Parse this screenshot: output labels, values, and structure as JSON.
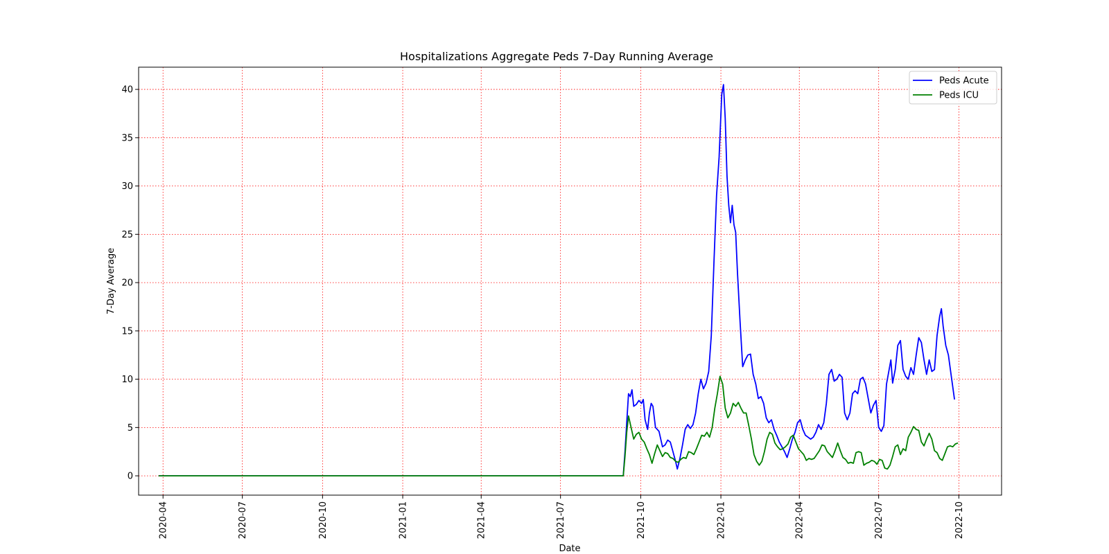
{
  "chart_data": {
    "type": "line",
    "title": "Hospitalizations Aggregate Peds 7-Day Running Average",
    "xlabel": "Date",
    "ylabel": "7-Day Average",
    "x_axis_type": "date",
    "xlim": [
      "2020-03-04",
      "2022-11-19"
    ],
    "ylim": [
      -2,
      42.3
    ],
    "x_ticks": [
      "2020-04",
      "2020-07",
      "2020-10",
      "2021-01",
      "2021-04",
      "2021-07",
      "2021-10",
      "2022-01",
      "2022-04",
      "2022-07",
      "2022-10"
    ],
    "y_ticks": [
      0,
      5,
      10,
      15,
      20,
      25,
      30,
      35,
      40
    ],
    "grid": true,
    "grid_style": "dotted",
    "grid_color": "#ff0000",
    "legend_position": "top-right",
    "series": [
      {
        "name": "Peds Acute",
        "color": "#0000ff",
        "points": [
          [
            "2020-03-27",
            0
          ],
          [
            "2021-09-11",
            0
          ],
          [
            "2021-09-13",
            2.5
          ],
          [
            "2021-09-15",
            5.5
          ],
          [
            "2021-09-17",
            8.5
          ],
          [
            "2021-09-19",
            8.2
          ],
          [
            "2021-09-21",
            8.9
          ],
          [
            "2021-09-23",
            7.2
          ],
          [
            "2021-09-26",
            7.4
          ],
          [
            "2021-09-29",
            7.8
          ],
          [
            "2021-10-02",
            7.5
          ],
          [
            "2021-10-04",
            7.9
          ],
          [
            "2021-10-06",
            5.8
          ],
          [
            "2021-10-09",
            4.8
          ],
          [
            "2021-10-11",
            6.5
          ],
          [
            "2021-10-13",
            7.5
          ],
          [
            "2021-10-15",
            7.2
          ],
          [
            "2021-10-18",
            5.0
          ],
          [
            "2021-10-22",
            4.6
          ],
          [
            "2021-10-26",
            3.0
          ],
          [
            "2021-10-29",
            3.2
          ],
          [
            "2021-11-01",
            3.7
          ],
          [
            "2021-11-04",
            3.5
          ],
          [
            "2021-11-07",
            2.5
          ],
          [
            "2021-11-10",
            1.5
          ],
          [
            "2021-11-12",
            0.7
          ],
          [
            "2021-11-15",
            1.8
          ],
          [
            "2021-11-18",
            3.2
          ],
          [
            "2021-11-21",
            4.8
          ],
          [
            "2021-11-24",
            5.3
          ],
          [
            "2021-11-27",
            4.9
          ],
          [
            "2021-11-30",
            5.3
          ],
          [
            "2021-12-03",
            6.5
          ],
          [
            "2021-12-06",
            8.5
          ],
          [
            "2021-12-09",
            10.0
          ],
          [
            "2021-12-12",
            9.0
          ],
          [
            "2021-12-15",
            9.6
          ],
          [
            "2021-12-18",
            10.8
          ],
          [
            "2021-12-21",
            14.5
          ],
          [
            "2021-12-24",
            22.0
          ],
          [
            "2021-12-27",
            29.0
          ],
          [
            "2021-12-30",
            33.0
          ],
          [
            "2022-01-02",
            39.5
          ],
          [
            "2022-01-04",
            40.5
          ],
          [
            "2022-01-06",
            37.0
          ],
          [
            "2022-01-08",
            31.0
          ],
          [
            "2022-01-10",
            28.0
          ],
          [
            "2022-01-12",
            26.2
          ],
          [
            "2022-01-14",
            28.0
          ],
          [
            "2022-01-16",
            26.0
          ],
          [
            "2022-01-18",
            25.2
          ],
          [
            "2022-01-20",
            21.0
          ],
          [
            "2022-01-23",
            16.0
          ],
          [
            "2022-01-26",
            11.3
          ],
          [
            "2022-01-29",
            12.0
          ],
          [
            "2022-02-01",
            12.5
          ],
          [
            "2022-02-04",
            12.6
          ],
          [
            "2022-02-07",
            10.5
          ],
          [
            "2022-02-10",
            9.5
          ],
          [
            "2022-02-13",
            8.0
          ],
          [
            "2022-02-16",
            8.2
          ],
          [
            "2022-02-19",
            7.5
          ],
          [
            "2022-02-22",
            6.0
          ],
          [
            "2022-02-25",
            5.5
          ],
          [
            "2022-02-28",
            5.8
          ],
          [
            "2022-03-03",
            4.8
          ],
          [
            "2022-03-06",
            4.2
          ],
          [
            "2022-03-09",
            3.5
          ],
          [
            "2022-03-12",
            3.0
          ],
          [
            "2022-03-15",
            2.5
          ],
          [
            "2022-03-18",
            1.9
          ],
          [
            "2022-03-21",
            2.8
          ],
          [
            "2022-03-24",
            3.8
          ],
          [
            "2022-03-27",
            4.5
          ],
          [
            "2022-03-30",
            5.5
          ],
          [
            "2022-04-02",
            5.8
          ],
          [
            "2022-04-05",
            4.8
          ],
          [
            "2022-04-08",
            4.2
          ],
          [
            "2022-04-11",
            4.0
          ],
          [
            "2022-04-14",
            3.8
          ],
          [
            "2022-04-17",
            4.0
          ],
          [
            "2022-04-20",
            4.5
          ],
          [
            "2022-04-23",
            5.3
          ],
          [
            "2022-04-26",
            4.8
          ],
          [
            "2022-04-29",
            5.5
          ],
          [
            "2022-05-02",
            7.5
          ],
          [
            "2022-05-05",
            10.5
          ],
          [
            "2022-05-08",
            11.0
          ],
          [
            "2022-05-11",
            9.8
          ],
          [
            "2022-05-14",
            10.0
          ],
          [
            "2022-05-17",
            10.5
          ],
          [
            "2022-05-20",
            10.2
          ],
          [
            "2022-05-23",
            6.5
          ],
          [
            "2022-05-26",
            5.8
          ],
          [
            "2022-05-29",
            6.5
          ],
          [
            "2022-06-01",
            8.5
          ],
          [
            "2022-06-04",
            8.8
          ],
          [
            "2022-06-07",
            8.5
          ],
          [
            "2022-06-10",
            10.0
          ],
          [
            "2022-06-13",
            10.2
          ],
          [
            "2022-06-16",
            9.5
          ],
          [
            "2022-06-19",
            8.0
          ],
          [
            "2022-06-22",
            6.5
          ],
          [
            "2022-06-25",
            7.3
          ],
          [
            "2022-06-28",
            7.8
          ],
          [
            "2022-07-01",
            5.0
          ],
          [
            "2022-07-04",
            4.6
          ],
          [
            "2022-07-07",
            5.2
          ],
          [
            "2022-07-10",
            9.5
          ],
          [
            "2022-07-13",
            11.0
          ],
          [
            "2022-07-15",
            12.0
          ],
          [
            "2022-07-17",
            9.6
          ],
          [
            "2022-07-20",
            11.0
          ],
          [
            "2022-07-23",
            13.5
          ],
          [
            "2022-07-26",
            14.0
          ],
          [
            "2022-07-29",
            11.0
          ],
          [
            "2022-08-01",
            10.3
          ],
          [
            "2022-08-04",
            10.0
          ],
          [
            "2022-08-07",
            11.2
          ],
          [
            "2022-08-10",
            10.5
          ],
          [
            "2022-08-13",
            12.5
          ],
          [
            "2022-08-16",
            14.3
          ],
          [
            "2022-08-19",
            13.8
          ],
          [
            "2022-08-22",
            12.0
          ],
          [
            "2022-08-25",
            10.5
          ],
          [
            "2022-08-28",
            12.0
          ],
          [
            "2022-08-31",
            10.8
          ],
          [
            "2022-09-03",
            11.0
          ],
          [
            "2022-09-06",
            14.5
          ],
          [
            "2022-09-09",
            16.5
          ],
          [
            "2022-09-11",
            17.3
          ],
          [
            "2022-09-13",
            15.5
          ],
          [
            "2022-09-16",
            13.5
          ],
          [
            "2022-09-19",
            12.5
          ],
          [
            "2022-09-22",
            10.5
          ],
          [
            "2022-09-26",
            7.9
          ]
        ]
      },
      {
        "name": "Peds ICU",
        "color": "#008000",
        "points": [
          [
            "2020-03-27",
            0
          ],
          [
            "2021-09-11",
            0
          ],
          [
            "2021-09-13",
            2.0
          ],
          [
            "2021-09-15",
            4.5
          ],
          [
            "2021-09-17",
            6.2
          ],
          [
            "2021-09-20",
            5.0
          ],
          [
            "2021-09-23",
            3.8
          ],
          [
            "2021-09-26",
            4.3
          ],
          [
            "2021-09-29",
            4.5
          ],
          [
            "2021-10-02",
            3.8
          ],
          [
            "2021-10-05",
            3.5
          ],
          [
            "2021-10-08",
            2.8
          ],
          [
            "2021-10-11",
            2.2
          ],
          [
            "2021-10-14",
            1.3
          ],
          [
            "2021-10-17",
            2.3
          ],
          [
            "2021-10-20",
            3.2
          ],
          [
            "2021-10-23",
            2.6
          ],
          [
            "2021-10-26",
            2.0
          ],
          [
            "2021-10-29",
            2.4
          ],
          [
            "2021-11-01",
            2.3
          ],
          [
            "2021-11-04",
            1.9
          ],
          [
            "2021-11-07",
            1.8
          ],
          [
            "2021-11-10",
            1.5
          ],
          [
            "2021-11-13",
            1.4
          ],
          [
            "2021-11-16",
            1.7
          ],
          [
            "2021-11-19",
            1.9
          ],
          [
            "2021-11-22",
            1.8
          ],
          [
            "2021-11-25",
            2.5
          ],
          [
            "2021-11-28",
            2.4
          ],
          [
            "2021-12-01",
            2.2
          ],
          [
            "2021-12-04",
            2.8
          ],
          [
            "2021-12-07",
            3.5
          ],
          [
            "2021-12-10",
            4.2
          ],
          [
            "2021-12-13",
            4.1
          ],
          [
            "2021-12-16",
            4.5
          ],
          [
            "2021-12-19",
            4.0
          ],
          [
            "2021-12-22",
            5.0
          ],
          [
            "2021-12-25",
            7.0
          ],
          [
            "2021-12-28",
            8.5
          ],
          [
            "2021-12-31",
            10.3
          ],
          [
            "2022-01-03",
            9.5
          ],
          [
            "2022-01-06",
            7.0
          ],
          [
            "2022-01-09",
            6.0
          ],
          [
            "2022-01-12",
            6.5
          ],
          [
            "2022-01-15",
            7.5
          ],
          [
            "2022-01-18",
            7.2
          ],
          [
            "2022-01-21",
            7.6
          ],
          [
            "2022-01-24",
            7.0
          ],
          [
            "2022-01-27",
            6.5
          ],
          [
            "2022-01-30",
            6.5
          ],
          [
            "2022-02-02",
            5.2
          ],
          [
            "2022-02-05",
            3.8
          ],
          [
            "2022-02-08",
            2.2
          ],
          [
            "2022-02-11",
            1.5
          ],
          [
            "2022-02-14",
            1.1
          ],
          [
            "2022-02-17",
            1.5
          ],
          [
            "2022-02-20",
            2.5
          ],
          [
            "2022-02-23",
            3.8
          ],
          [
            "2022-02-26",
            4.5
          ],
          [
            "2022-03-01",
            4.3
          ],
          [
            "2022-03-04",
            3.4
          ],
          [
            "2022-03-07",
            3.0
          ],
          [
            "2022-03-10",
            2.7
          ],
          [
            "2022-03-13",
            2.8
          ],
          [
            "2022-03-16",
            3.0
          ],
          [
            "2022-03-19",
            3.3
          ],
          [
            "2022-03-22",
            4.0
          ],
          [
            "2022-03-25",
            4.2
          ],
          [
            "2022-03-28",
            3.5
          ],
          [
            "2022-03-31",
            2.8
          ],
          [
            "2022-04-03",
            2.5
          ],
          [
            "2022-04-06",
            2.2
          ],
          [
            "2022-04-09",
            1.6
          ],
          [
            "2022-04-12",
            1.8
          ],
          [
            "2022-04-15",
            1.7
          ],
          [
            "2022-04-18",
            1.8
          ],
          [
            "2022-04-21",
            2.2
          ],
          [
            "2022-04-24",
            2.6
          ],
          [
            "2022-04-27",
            3.2
          ],
          [
            "2022-04-30",
            3.1
          ],
          [
            "2022-05-03",
            2.5
          ],
          [
            "2022-05-06",
            2.2
          ],
          [
            "2022-05-09",
            1.9
          ],
          [
            "2022-05-12",
            2.6
          ],
          [
            "2022-05-15",
            3.4
          ],
          [
            "2022-05-18",
            2.6
          ],
          [
            "2022-05-21",
            1.9
          ],
          [
            "2022-05-24",
            1.7
          ],
          [
            "2022-05-27",
            1.3
          ],
          [
            "2022-05-30",
            1.4
          ],
          [
            "2022-06-02",
            1.3
          ],
          [
            "2022-06-05",
            2.4
          ],
          [
            "2022-06-08",
            2.5
          ],
          [
            "2022-06-11",
            2.4
          ],
          [
            "2022-06-14",
            1.1
          ],
          [
            "2022-06-17",
            1.3
          ],
          [
            "2022-06-20",
            1.4
          ],
          [
            "2022-06-23",
            1.6
          ],
          [
            "2022-06-26",
            1.5
          ],
          [
            "2022-06-29",
            1.2
          ],
          [
            "2022-07-02",
            1.7
          ],
          [
            "2022-07-05",
            1.6
          ],
          [
            "2022-07-08",
            0.8
          ],
          [
            "2022-07-11",
            0.7
          ],
          [
            "2022-07-14",
            1.1
          ],
          [
            "2022-07-17",
            2.0
          ],
          [
            "2022-07-20",
            3.0
          ],
          [
            "2022-07-23",
            3.2
          ],
          [
            "2022-07-26",
            2.2
          ],
          [
            "2022-07-29",
            2.8
          ],
          [
            "2022-08-01",
            2.6
          ],
          [
            "2022-08-04",
            4.0
          ],
          [
            "2022-08-07",
            4.5
          ],
          [
            "2022-08-10",
            5.1
          ],
          [
            "2022-08-13",
            4.8
          ],
          [
            "2022-08-16",
            4.7
          ],
          [
            "2022-08-19",
            3.5
          ],
          [
            "2022-08-22",
            3.1
          ],
          [
            "2022-08-25",
            3.8
          ],
          [
            "2022-08-28",
            4.4
          ],
          [
            "2022-08-31",
            3.8
          ],
          [
            "2022-09-03",
            2.6
          ],
          [
            "2022-09-06",
            2.4
          ],
          [
            "2022-09-09",
            1.8
          ],
          [
            "2022-09-12",
            1.6
          ],
          [
            "2022-09-15",
            2.3
          ],
          [
            "2022-09-18",
            3.0
          ],
          [
            "2022-09-21",
            3.1
          ],
          [
            "2022-09-24",
            3.0
          ],
          [
            "2022-09-27",
            3.3
          ],
          [
            "2022-09-30",
            3.4
          ]
        ]
      }
    ]
  }
}
